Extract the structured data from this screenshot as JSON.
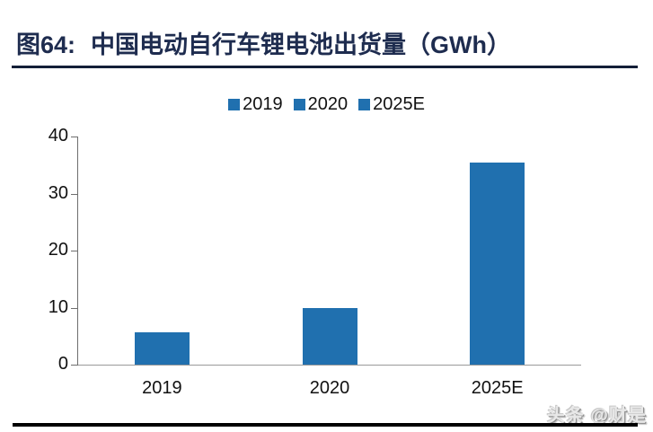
{
  "figure": {
    "title_prefix": "图64:",
    "title_text": "中国电动自行车锂电池出货量（GWh）"
  },
  "watermark": "头条 @财是",
  "colors": {
    "bar": "#2070AF",
    "title": "#1E2C4F",
    "title_rule": "#131F38",
    "axis_line": "#6E6E6E",
    "baseline": "#9A9A9A",
    "tick_text": "#111111",
    "bottom_rule": "#000000"
  },
  "chart_data": {
    "type": "bar",
    "title": "图64: 中国电动自行车锂电池出货量（GWh）",
    "categories": [
      "2019",
      "2020",
      "2025E"
    ],
    "values": [
      5.6,
      9.9,
      35.4
    ],
    "unit": "GWh",
    "xlabel": "",
    "ylabel": "",
    "ylim": [
      0,
      40
    ],
    "yticks": [
      0,
      10,
      20,
      30,
      40
    ],
    "grid": false,
    "legend": [
      "2019",
      "2020",
      "2025E"
    ],
    "legend_position": "top-center",
    "bar_color": "#2070AF"
  }
}
